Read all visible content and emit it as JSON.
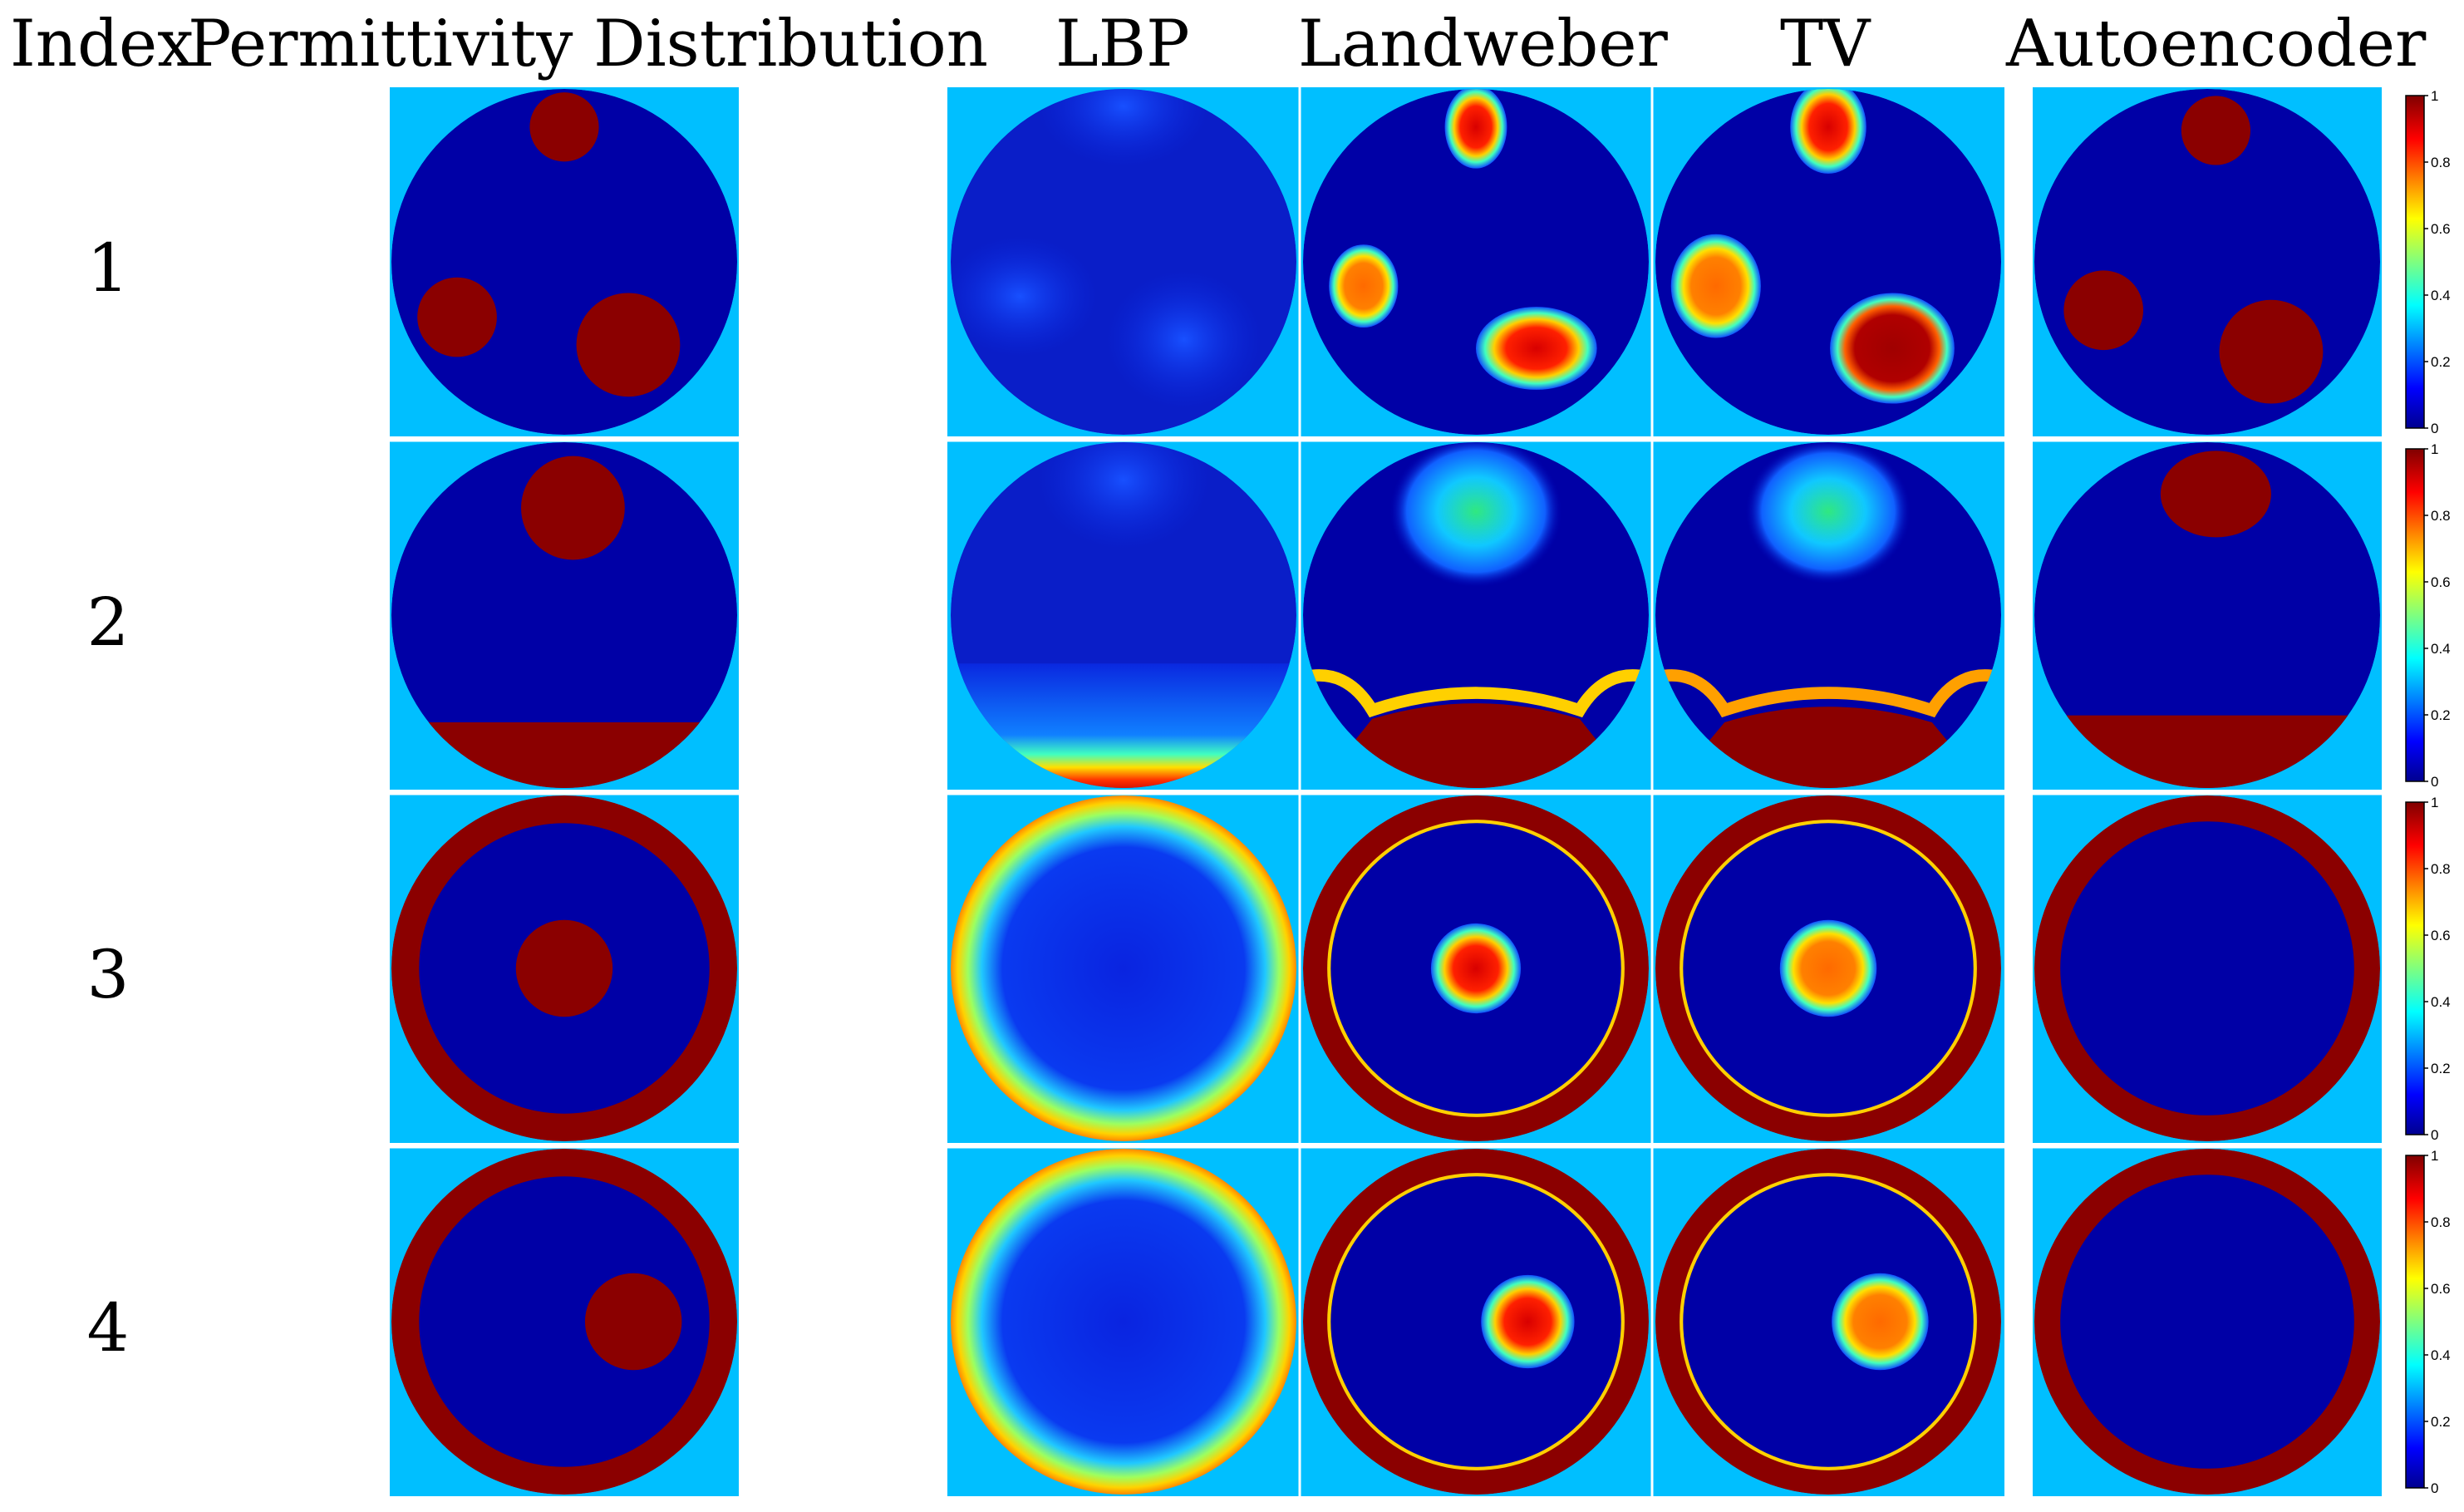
{
  "headers": {
    "index": "Index",
    "distribution": "Permittivity Distribution",
    "lbp": "LBP",
    "landweber": "Landweber",
    "tv": "TV",
    "autoencoder": "Autoencoder"
  },
  "rows": [
    {
      "index": "1"
    },
    {
      "index": "2"
    },
    {
      "index": "3"
    },
    {
      "index": "4"
    }
  ],
  "colorbar": {
    "ticks": [
      "0",
      "0.2",
      "0.4",
      "0.6",
      "0.8",
      "1"
    ]
  },
  "colors": {
    "background": "#00bfff",
    "low": "#0000a6",
    "high": "#8b0000",
    "separator": "#ffffff"
  }
}
